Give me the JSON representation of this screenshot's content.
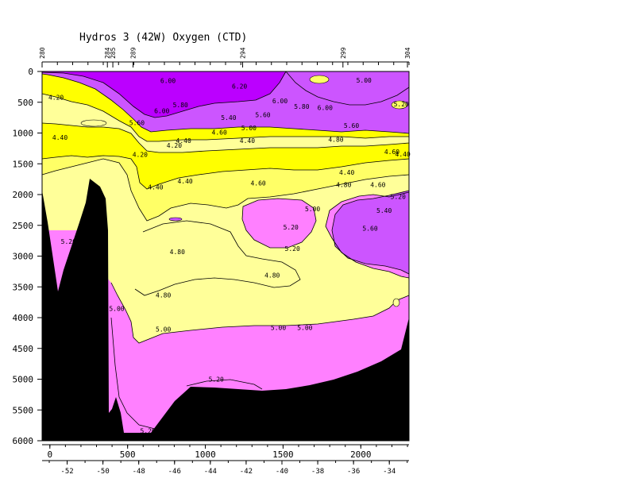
{
  "chart_data": {
    "type": "heatmap",
    "title": "Hydros 3 (42W) Oxygen (CTD)",
    "y_axis": {
      "ticks": [
        0,
        500,
        1000,
        1500,
        2000,
        2500,
        3000,
        3500,
        4000,
        4500,
        5000,
        5500,
        6000
      ],
      "range": [
        0,
        6000
      ],
      "inverted": true
    },
    "x_axis_distance": {
      "ticks": [
        0,
        500,
        1000,
        1500,
        2000
      ],
      "range": [
        -50,
        2310
      ]
    },
    "x_axis_latitude": {
      "ticks": [
        -52,
        -50,
        -48,
        -46,
        -44,
        -42,
        -40,
        -38,
        -36,
        -34
      ]
    },
    "stations": [
      {
        "label": "280",
        "distance": -50
      },
      {
        "label": "284",
        "distance": 370
      },
      {
        "label": "285",
        "distance": 405
      },
      {
        "label": "289",
        "distance": 535
      },
      {
        "label": "294",
        "distance": 1240
      },
      {
        "label": "299",
        "distance": 1885
      },
      {
        "label": "304",
        "distance": 2300
      }
    ],
    "colorbands": [
      {
        "range": "<4.20",
        "color": "#ffff00"
      },
      {
        "range": "4.20-4.40",
        "color": "#ffff00"
      },
      {
        "range": "4.40-4.60",
        "color": "#ffff66"
      },
      {
        "range": "4.60-5.00",
        "color": "#ffff99"
      },
      {
        "range": "5.00-5.40",
        "color": "#ff80ff"
      },
      {
        "range": "5.40-5.80",
        "color": "#cc55ff"
      },
      {
        "range": ">5.80",
        "color": "#bb00ff"
      }
    ],
    "contour_labels": [
      {
        "text": "4.20",
        "d": 40,
        "p": 420
      },
      {
        "text": "4.40",
        "d": 65,
        "p": 1070
      },
      {
        "text": "4.20",
        "d": 800,
        "p": 1200
      },
      {
        "text": "4.40",
        "d": 860,
        "p": 1120
      },
      {
        "text": "4.60",
        "d": 1090,
        "p": 990
      },
      {
        "text": "5.00",
        "d": 1280,
        "p": 915
      },
      {
        "text": "5.40",
        "d": 1150,
        "p": 750
      },
      {
        "text": "5.60",
        "d": 1370,
        "p": 700
      },
      {
        "text": "5.80",
        "d": 840,
        "p": 540
      },
      {
        "text": "6.00",
        "d": 720,
        "p": 640
      },
      {
        "text": "6.00",
        "d": 760,
        "p": 150
      },
      {
        "text": "6.20",
        "d": 1220,
        "p": 240
      },
      {
        "text": "6.00",
        "d": 1480,
        "p": 480
      },
      {
        "text": "5.80",
        "d": 1620,
        "p": 570
      },
      {
        "text": "6.00",
        "d": 1770,
        "p": 590
      },
      {
        "text": "5.00",
        "d": 2020,
        "p": 140
      },
      {
        "text": "5.20",
        "d": 2260,
        "p": 530
      },
      {
        "text": "5.60",
        "d": 1940,
        "p": 880
      },
      {
        "text": "4.80",
        "d": 1840,
        "p": 1100
      },
      {
        "text": "4.60",
        "d": 2200,
        "p": 1300
      },
      {
        "text": "4.40",
        "d": 2270,
        "p": 1340
      },
      {
        "text": "5.60",
        "d": 560,
        "p": 830
      },
      {
        "text": "4.40",
        "d": 1270,
        "p": 1120
      },
      {
        "text": "4.20",
        "d": 580,
        "p": 1350
      },
      {
        "text": "4.40",
        "d": 680,
        "p": 1880
      },
      {
        "text": "4.40",
        "d": 870,
        "p": 1780
      },
      {
        "text": "4.60",
        "d": 1340,
        "p": 1810
      },
      {
        "text": "4.40",
        "d": 1910,
        "p": 1640
      },
      {
        "text": "4.80",
        "d": 1890,
        "p": 1840
      },
      {
        "text": "4.60",
        "d": 2110,
        "p": 1840
      },
      {
        "text": "5.20",
        "d": 2240,
        "p": 2030
      },
      {
        "text": "5.40",
        "d": 2150,
        "p": 2260
      },
      {
        "text": "5.00",
        "d": 1690,
        "p": 2230
      },
      {
        "text": "5.60",
        "d": 2060,
        "p": 2550
      },
      {
        "text": "5.20",
        "d": 1550,
        "p": 2530
      },
      {
        "text": "5.20",
        "d": 1560,
        "p": 2880
      },
      {
        "text": "4.80",
        "d": 820,
        "p": 2930
      },
      {
        "text": "4.80",
        "d": 1430,
        "p": 3310
      },
      {
        "text": "4.80",
        "d": 730,
        "p": 3630
      },
      {
        "text": "5.00",
        "d": 430,
        "p": 3850
      },
      {
        "text": "5.20",
        "d": 120,
        "p": 2760
      },
      {
        "text": "5.00",
        "d": 730,
        "p": 4190
      },
      {
        "text": "5.00",
        "d": 1470,
        "p": 4160
      },
      {
        "text": "5.00",
        "d": 1640,
        "p": 4160
      },
      {
        "text": "5.20",
        "d": 1070,
        "p": 5000
      },
      {
        "text": "5.20",
        "d": 630,
        "p": 5840
      }
    ]
  }
}
